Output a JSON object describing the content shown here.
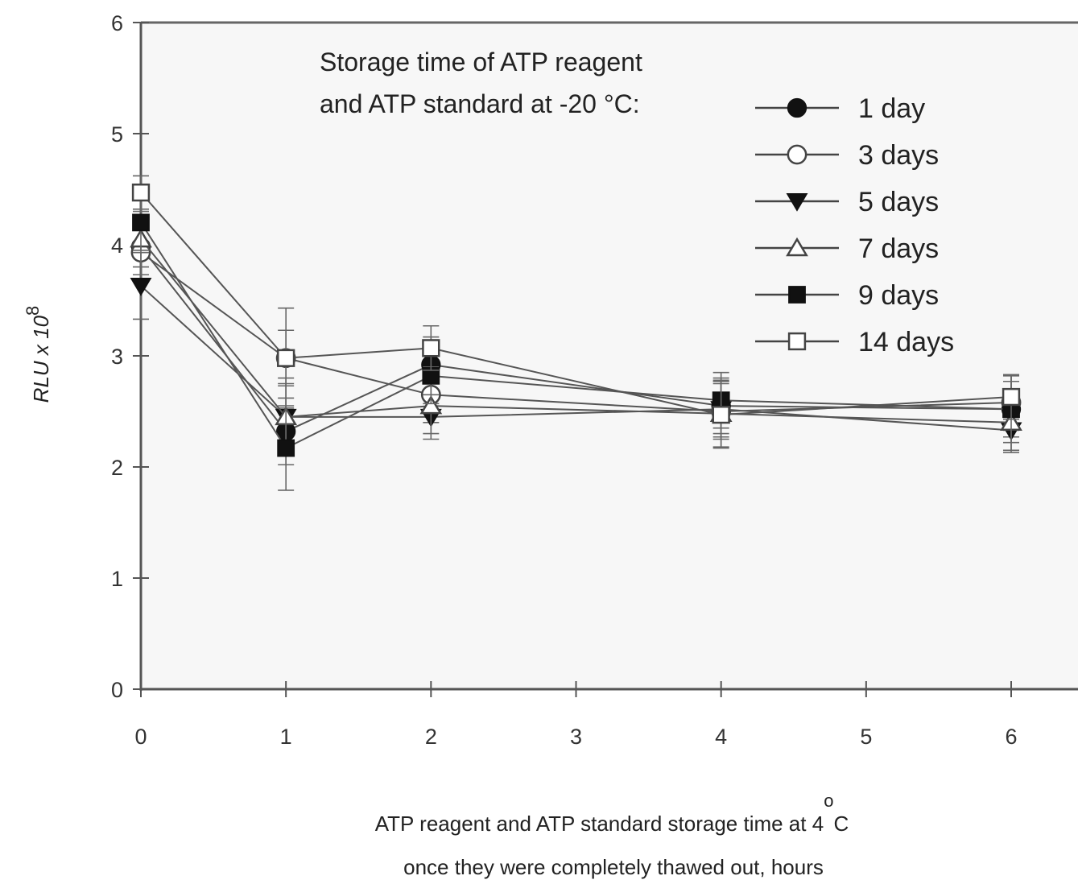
{
  "chart_data": {
    "type": "line",
    "x": [
      0,
      1,
      2,
      4,
      6
    ],
    "xticks": [
      0,
      1,
      2,
      3,
      4,
      5,
      6
    ],
    "xlim": [
      0,
      6
    ],
    "ylim": [
      0,
      6
    ],
    "yticks": [
      0,
      1,
      2,
      3,
      4,
      5,
      6
    ],
    "grid": false,
    "ylabel": "RLU x 10",
    "ylabel_exponent": "8",
    "xlabel_line1": "ATP reagent and ATP standard storage time at 4",
    "xlabel_degree": "o",
    "xlabel_unit": "C",
    "xlabel_line2": "once they were completely thawed out, hours",
    "legend_title_line1": "Storage time of ATP reagent",
    "legend_title_line2": "and ATP standard at -20 °C:",
    "legend_placement": "top-right",
    "series": [
      {
        "name": "1 day",
        "marker": "circle-filled",
        "values": [
          3.98,
          2.32,
          2.92,
          2.55,
          2.52
        ],
        "err": [
          0.25,
          0.3,
          0.25,
          0.25,
          0.25
        ]
      },
      {
        "name": "3 days",
        "marker": "circle-open",
        "values": [
          3.93,
          2.98,
          2.65,
          2.5,
          2.58
        ],
        "err": [
          0.25,
          0.45,
          0.25,
          0.25,
          0.25
        ]
      },
      {
        "name": "5 days",
        "marker": "triangle-down-filled",
        "values": [
          3.63,
          2.45,
          2.45,
          2.52,
          2.33
        ],
        "err": [
          0.3,
          0.35,
          0.2,
          0.25,
          0.2
        ]
      },
      {
        "name": "7 days",
        "marker": "triangle-up-open",
        "values": [
          4.05,
          2.45,
          2.55,
          2.48,
          2.4
        ],
        "err": [
          0.25,
          0.3,
          0.25,
          0.3,
          0.25
        ]
      },
      {
        "name": "9 days",
        "marker": "square-filled",
        "values": [
          4.2,
          2.17,
          2.82,
          2.6,
          2.52
        ],
        "err": [
          0.25,
          0.38,
          0.25,
          0.25,
          0.3
        ]
      },
      {
        "name": "14 days",
        "marker": "square-open",
        "values": [
          4.47,
          2.98,
          3.07,
          2.47,
          2.63
        ],
        "err": [
          0.15,
          0.25,
          0.2,
          0.3,
          0.2
        ]
      }
    ]
  }
}
